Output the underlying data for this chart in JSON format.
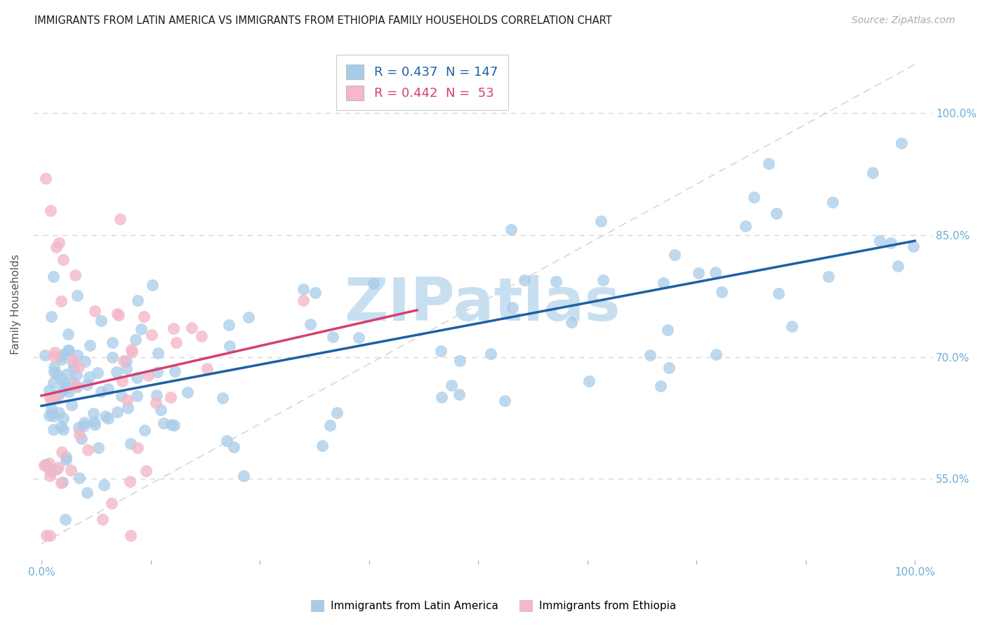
{
  "title": "IMMIGRANTS FROM LATIN AMERICA VS IMMIGRANTS FROM ETHIOPIA FAMILY HOUSEHOLDS CORRELATION CHART",
  "source": "Source: ZipAtlas.com",
  "ylabel": "Family Households",
  "blue_r": "R = 0.437",
  "blue_n": "N = 147",
  "pink_r": "R = 0.442",
  "pink_n": "N =  53",
  "legend_label_blue": "Immigrants from Latin America",
  "legend_label_pink": "Immigrants from Ethiopia",
  "blue_scatter_color": "#a8cce8",
  "pink_scatter_color": "#f4b8c8",
  "blue_line_color": "#1f5fa6",
  "pink_line_color": "#d44070",
  "diag_line_color": "#cccccc",
  "watermark_text": "ZIPatlas",
  "watermark_color": "#c8dff0",
  "background_color": "#ffffff",
  "grid_color": "#d0d8e0",
  "title_color": "#1a1a1a",
  "axis_tick_color": "#6baed6",
  "xlim_min": 0.0,
  "xlim_max": 1.0,
  "ylim_min": 0.45,
  "ylim_max": 1.08,
  "ytick_positions": [
    0.55,
    0.7,
    0.85,
    1.0
  ],
  "ytick_labels": [
    "55.0%",
    "70.0%",
    "85.0%",
    "100.0%"
  ],
  "xtick_labels_left": "0.0%",
  "xtick_labels_right": "100.0%"
}
